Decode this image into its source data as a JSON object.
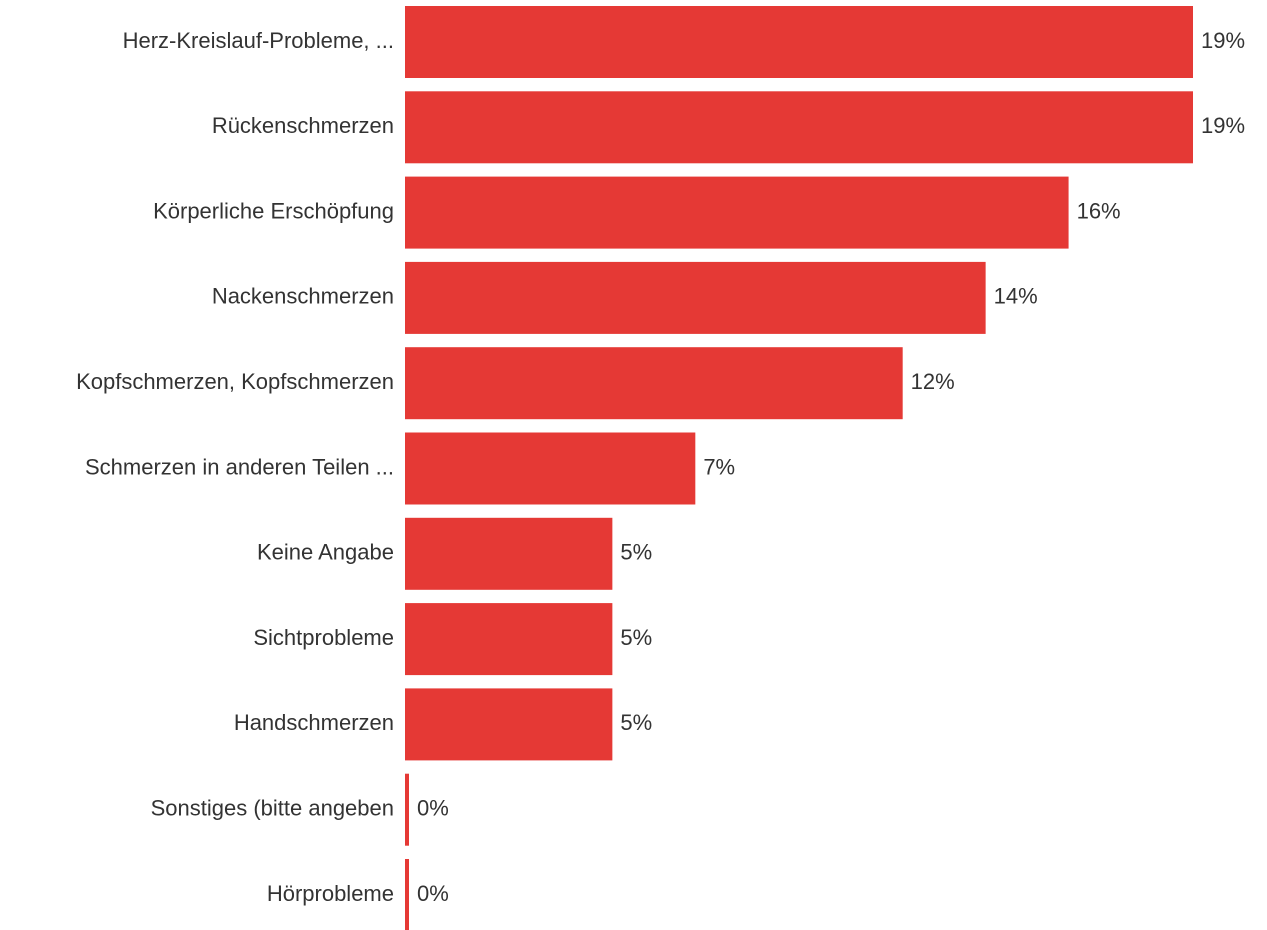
{
  "chart_data": {
    "type": "hbar",
    "categories": [
      "Herz-Kreislauf-Probleme, ...",
      "Rückenschmerzen",
      "Körperliche Erschöpfung",
      "Nackenschmerzen",
      "Kopfschmerzen, Kopfschmerzen",
      "Schmerzen in anderen Teilen ...",
      "Keine Angabe",
      "Sichtprobleme",
      "Handschmerzen",
      "Sonstiges (bitte angeben",
      "Hörprobleme"
    ],
    "values": [
      19,
      19,
      16,
      14,
      12,
      7,
      5,
      5,
      5,
      0,
      0
    ],
    "value_labels": [
      "19%",
      "19%",
      "16%",
      "14%",
      "12%",
      "7%",
      "5%",
      "5%",
      "5%",
      "0%",
      "0%"
    ],
    "color": "#e53935"
  }
}
